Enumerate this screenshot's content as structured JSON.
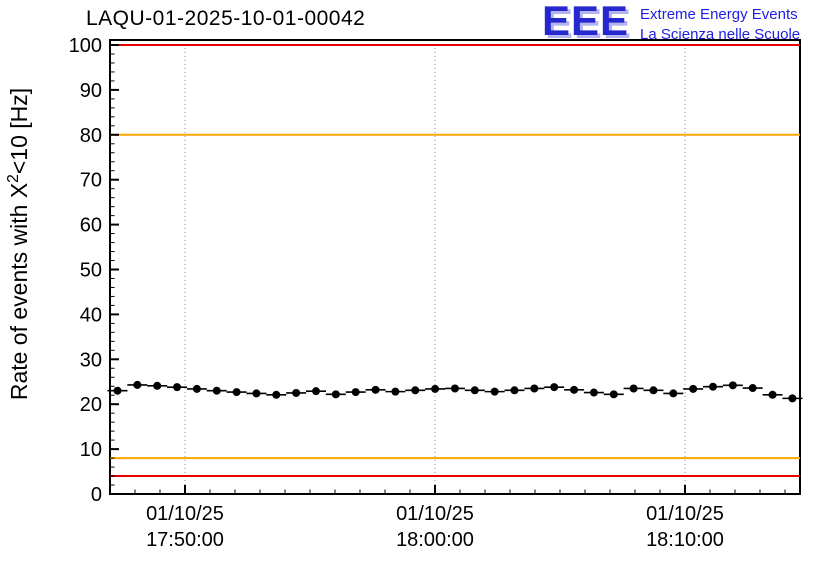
{
  "header": {
    "title": "LAQU-01-2025-10-01-00042",
    "logo": {
      "acronym": "EEE",
      "line1": "Extreme Energy Events",
      "line2": "La Scienza nelle Scuole"
    }
  },
  "y_axis_label": {
    "prefix": "Rate of events with X",
    "sup": "2",
    "suffix": "<10 [Hz]"
  },
  "chart_data": {
    "type": "scatter",
    "title": "LAQU-01-2025-10-01-00042",
    "ylabel": "Rate of events with X^2<10 [Hz]",
    "xlabel": "",
    "ylim": [
      0,
      100
    ],
    "y_ticks": [
      0,
      10,
      20,
      30,
      40,
      50,
      60,
      70,
      80,
      90,
      100
    ],
    "y_minor_step": 2,
    "grid": "vertical-dotted",
    "legend": "none",
    "x_domain_minutes": [
      2.0,
      29.6
    ],
    "x_minor_step_minutes": 1,
    "x_ticks": [
      {
        "minutes": 5,
        "label_line1": "01/10/25",
        "label_line2": "17:50:00"
      },
      {
        "minutes": 15,
        "label_line1": "01/10/25",
        "label_line2": "18:00:00"
      },
      {
        "minutes": 25,
        "label_line1": "01/10/25",
        "label_line2": "18:10:00"
      }
    ],
    "reference_lines": [
      {
        "y": 100,
        "color": "#e60000",
        "name": "upper-alarm-line"
      },
      {
        "y": 80,
        "color": "#ffa500",
        "name": "upper-warning-line"
      },
      {
        "y": 8,
        "color": "#ffa500",
        "name": "lower-warning-line"
      },
      {
        "y": 4,
        "color": "#e60000",
        "name": "lower-alarm-line"
      }
    ],
    "series": {
      "name": "event-rate",
      "marker": "filled-circle",
      "color": "#000000",
      "start_minute": 2.3,
      "step_minute": 0.794,
      "x_error_minutes": 0.4,
      "y_error_hz": 0.5,
      "values": [
        23.0,
        24.3,
        24.1,
        23.8,
        23.4,
        23.0,
        22.7,
        22.4,
        22.1,
        22.5,
        22.9,
        22.2,
        22.7,
        23.2,
        22.8,
        23.1,
        23.4,
        23.5,
        23.1,
        22.8,
        23.1,
        23.5,
        23.8,
        23.2,
        22.6,
        22.2,
        23.5,
        23.1,
        22.4,
        23.4,
        23.9,
        24.2,
        23.6,
        22.1,
        21.3
      ]
    },
    "colors": {
      "frame": "#000000",
      "grid": "#8a8a8a",
      "marker": "#000000"
    }
  }
}
